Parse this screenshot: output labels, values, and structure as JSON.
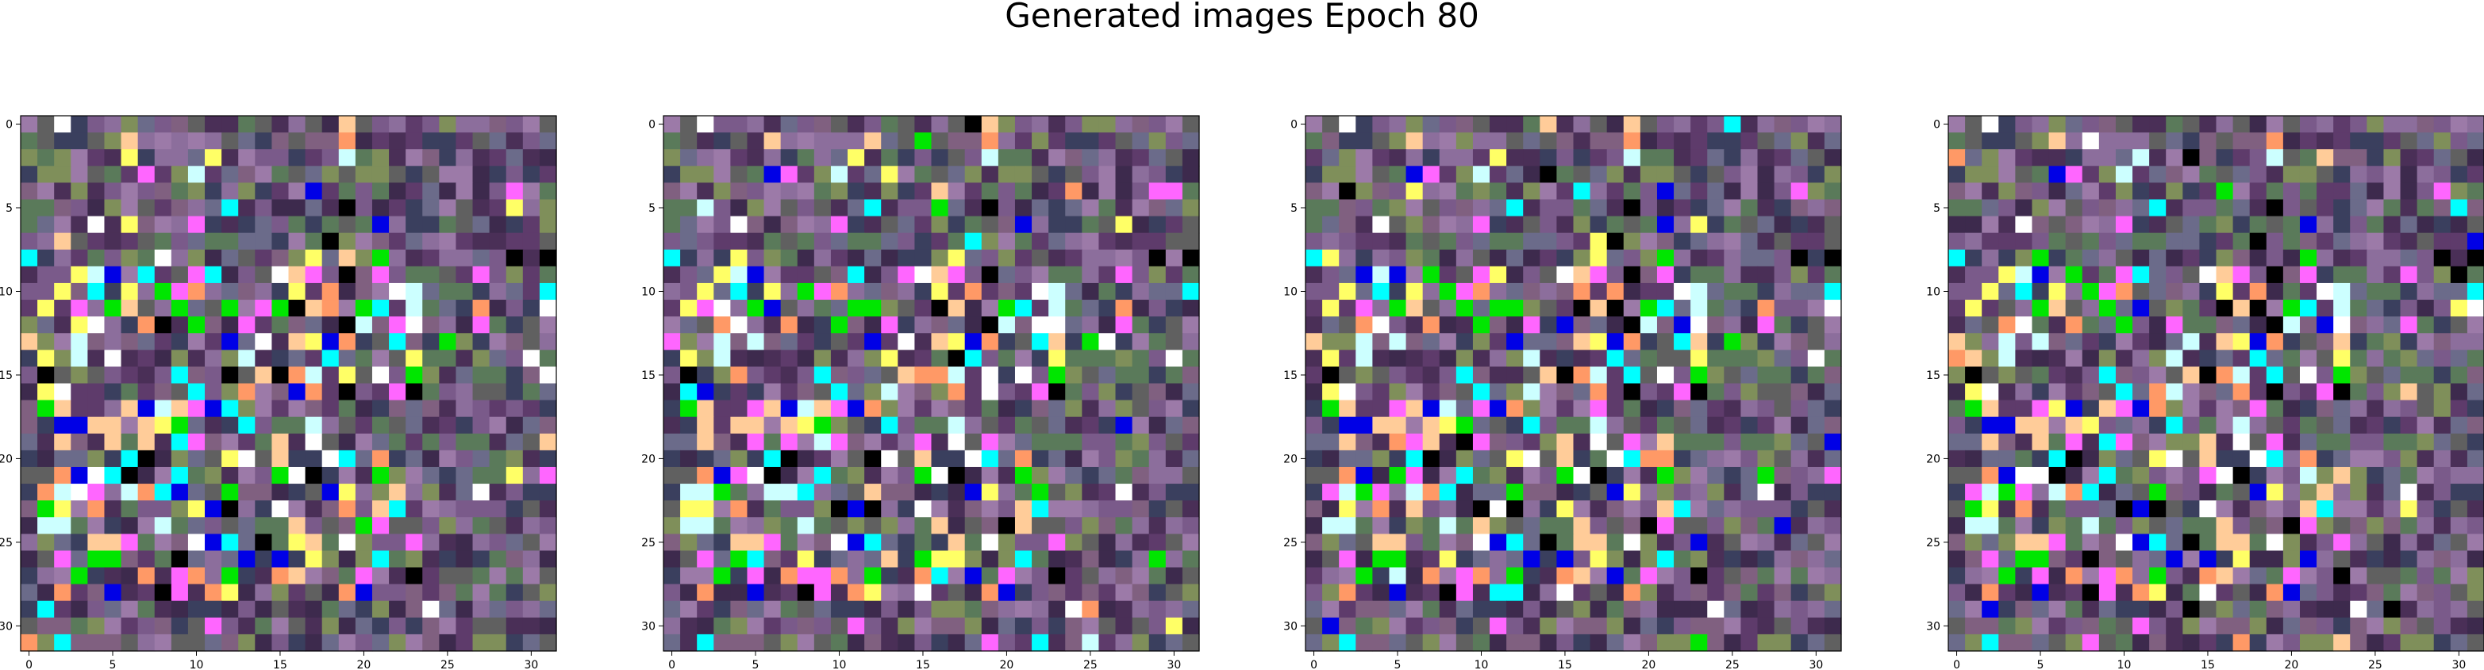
{
  "figure": {
    "title": "Generated images Epoch 80"
  },
  "panels": [
    {
      "x_ticks": [
        "0",
        "5",
        "10",
        "15",
        "20",
        "25",
        "30"
      ],
      "y_ticks": [
        "0",
        "5",
        "10",
        "15",
        "20",
        "25",
        "30"
      ],
      "grid_size": 32,
      "seed": 80
    },
    {
      "x_ticks": [
        "0",
        "5",
        "10",
        "15",
        "20",
        "25",
        "30"
      ],
      "y_ticks": [
        "0",
        "5",
        "10",
        "15",
        "20",
        "25",
        "30"
      ],
      "grid_size": 32,
      "seed": 81
    },
    {
      "x_ticks": [
        "0",
        "5",
        "10",
        "15",
        "20",
        "25",
        "30"
      ],
      "y_ticks": [
        "0",
        "5",
        "10",
        "15",
        "20",
        "25",
        "30"
      ],
      "grid_size": 32,
      "seed": 82
    },
    {
      "x_ticks": [
        "0",
        "5",
        "10",
        "15",
        "20",
        "25",
        "30"
      ],
      "y_ticks": [
        "0",
        "5",
        "10",
        "15",
        "20",
        "25",
        "30"
      ],
      "grid_size": 32,
      "seed": 83
    }
  ],
  "palette": {
    "background": "#ffffff",
    "axis": "#000000",
    "bright": [
      "#00e600",
      "#ffffff",
      "#00ffff",
      "#0000e6",
      "#ff66ff",
      "#000000",
      "#ffcc99",
      "#ffff66",
      "#ccffff",
      "#ff9966"
    ],
    "muted": [
      "#5e3b6b",
      "#7a5a8a",
      "#4a2f57",
      "#8c6e9c",
      "#6b6b8a",
      "#3d2a4d",
      "#7f8f5a",
      "#5a7a5a",
      "#9c7aa8",
      "#3a3f5e",
      "#806080",
      "#606060"
    ]
  }
}
